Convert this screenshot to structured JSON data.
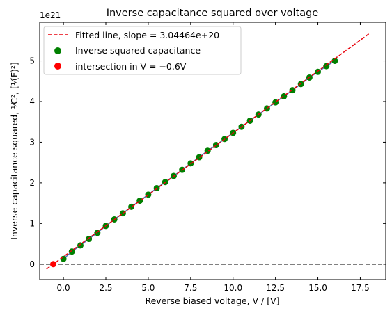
{
  "chart_data": {
    "type": "scatter",
    "title": "Inverse capacitance squared over voltage",
    "xlabel": "Reverse biased voltage, V / [V]",
    "ylabel": "Inverse capacitance squared, ¹⁄C², [¹⁄(F)²]",
    "y_offset_label": "1e21",
    "xlim": [
      -1.4,
      19.0
    ],
    "ylim": [
      -0.38,
      5.95
    ],
    "x_ticks": [
      0.0,
      2.5,
      5.0,
      7.5,
      10.0,
      12.5,
      15.0,
      17.5
    ],
    "x_tick_labels": [
      "0.0",
      "2.5",
      "5.0",
      "7.5",
      "10.0",
      "12.5",
      "15.0",
      "17.5"
    ],
    "y_ticks": [
      0,
      1,
      2,
      3,
      4,
      5
    ],
    "y_tick_labels": [
      "0",
      "1",
      "2",
      "3",
      "4",
      "5"
    ],
    "grid": false,
    "legend_position": "top-left",
    "fit_line": {
      "name": "Fitted line, slope = 3.04464e+20",
      "slope": 0.304464,
      "intercept": 0.1827,
      "x_range": [
        -1.0,
        18.0
      ],
      "color": "#e8000b"
    },
    "zero_line": {
      "y": 0,
      "color": "#000000"
    },
    "series": [
      {
        "name": "Inverse squared capacitance",
        "color": "#008000",
        "x": [
          0,
          0.5,
          1,
          1.5,
          2,
          2.5,
          3,
          3.5,
          4,
          4.5,
          5,
          5.5,
          6,
          6.5,
          7,
          7.5,
          8,
          8.5,
          9,
          9.5,
          10,
          10.5,
          11,
          11.5,
          12,
          12.5,
          13,
          13.5,
          14,
          14.5,
          15,
          15.5,
          16
        ],
        "y": [
          0.13,
          0.31,
          0.46,
          0.62,
          0.77,
          0.94,
          1.1,
          1.25,
          1.41,
          1.56,
          1.71,
          1.87,
          2.02,
          2.17,
          2.32,
          2.48,
          2.63,
          2.79,
          2.93,
          3.08,
          3.23,
          3.38,
          3.53,
          3.68,
          3.83,
          3.98,
          4.13,
          4.28,
          4.43,
          4.59,
          4.73,
          4.87,
          5.0
        ]
      },
      {
        "name": "intersection in V = −0.6V",
        "color": "#ff0000",
        "x": [
          -0.6
        ],
        "y": [
          0.0
        ]
      }
    ]
  }
}
